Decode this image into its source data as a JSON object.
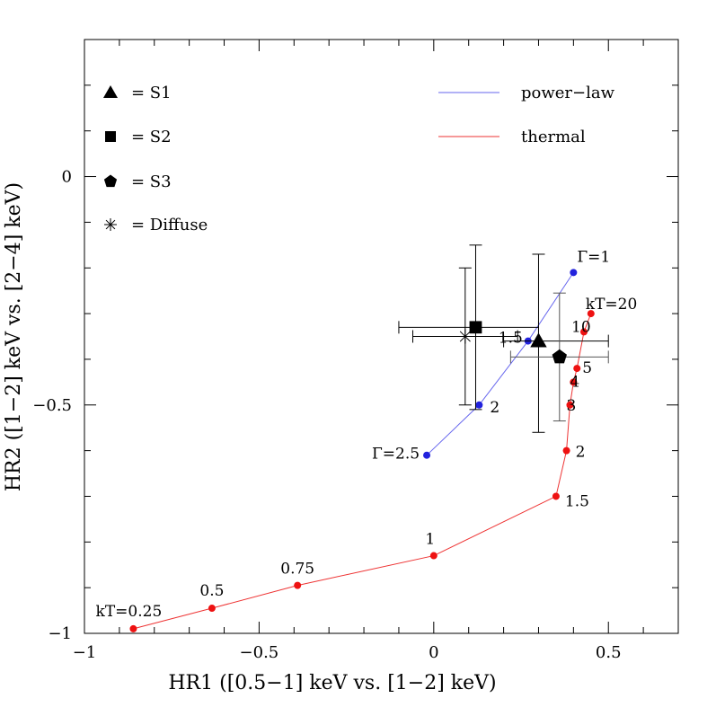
{
  "chart_data": {
    "type": "scatter",
    "xlabel": "HR1 ([0.5−1] keV vs. [1−2] keV)",
    "ylabel": "HR2 ([1−2] keV vs. [2−4] keV)",
    "xlim": [
      -1,
      0.7
    ],
    "ylim": [
      -1,
      0.3
    ],
    "x_ticks": [
      {
        "value": -1,
        "label": "−1"
      },
      {
        "value": -0.5,
        "label": "−0.5"
      },
      {
        "value": 0,
        "label": "0"
      },
      {
        "value": 0.5,
        "label": "0.5"
      }
    ],
    "y_ticks": [
      {
        "value": -1,
        "label": "−1"
      },
      {
        "value": -0.5,
        "label": "−0.5"
      },
      {
        "value": 0,
        "label": "0"
      }
    ],
    "grid": false,
    "legend": {
      "placement": "top-left and top-right",
      "symbols": [
        {
          "marker": "triangle",
          "label": "= S1"
        },
        {
          "marker": "square",
          "label": "= S2"
        },
        {
          "marker": "pentagon",
          "label": "= S3"
        },
        {
          "marker": "asterisk",
          "label": "= Diffuse"
        }
      ],
      "lines": [
        {
          "color": "#6666ee",
          "label": "power−law"
        },
        {
          "color": "#ee3333",
          "label": "thermal"
        }
      ]
    },
    "series": [
      {
        "name": "power−law",
        "color": "#2222dd",
        "line_color": "#6666ee",
        "points": [
          {
            "x": 0.4,
            "y": -0.21,
            "label": "Γ=1"
          },
          {
            "x": 0.27,
            "y": -0.36,
            "label": "1.5"
          },
          {
            "x": 0.13,
            "y": -0.5,
            "label": "2"
          },
          {
            "x": -0.02,
            "y": -0.61,
            "label": "Γ=2.5"
          }
        ]
      },
      {
        "name": "thermal",
        "color": "#ee1111",
        "line_color": "#ee3333",
        "points": [
          {
            "x": 0.45,
            "y": -0.3,
            "label": "kT=20"
          },
          {
            "x": 0.43,
            "y": -0.34,
            "label": "10"
          },
          {
            "x": 0.41,
            "y": -0.42,
            "label": "5"
          },
          {
            "x": 0.4,
            "y": -0.45,
            "label": "4"
          },
          {
            "x": 0.39,
            "y": -0.5,
            "label": "3"
          },
          {
            "x": 0.38,
            "y": -0.6,
            "label": "2"
          },
          {
            "x": 0.35,
            "y": -0.7,
            "label": "1.5"
          },
          {
            "x": 0.0,
            "y": -0.83,
            "label": "1"
          },
          {
            "x": -0.39,
            "y": -0.895,
            "label": "0.75"
          },
          {
            "x": -0.635,
            "y": -0.945,
            "label": "0.5"
          },
          {
            "x": -0.86,
            "y": -0.99,
            "label": "kT=0.25"
          }
        ]
      }
    ],
    "sources": [
      {
        "name": "S1",
        "marker": "triangle",
        "x": 0.3,
        "y": -0.36,
        "x_err": [
          0.1,
          0.2
        ],
        "y_err": [
          0.2,
          0.19
        ]
      },
      {
        "name": "S2",
        "marker": "square",
        "x": 0.12,
        "y": -0.33,
        "x_err": [
          0.22,
          0.18
        ],
        "y_err": [
          0.18,
          0.18
        ]
      },
      {
        "name": "S3",
        "marker": "pentagon",
        "x": 0.36,
        "y": -0.395,
        "x_err": [
          0.14,
          0.14
        ],
        "y_err": [
          0.14,
          0.14
        ]
      },
      {
        "name": "Diffuse",
        "marker": "asterisk",
        "x": 0.09,
        "y": -0.35,
        "x_err": [
          0.15,
          0.15
        ],
        "y_err": [
          0.15,
          0.15
        ]
      }
    ]
  }
}
